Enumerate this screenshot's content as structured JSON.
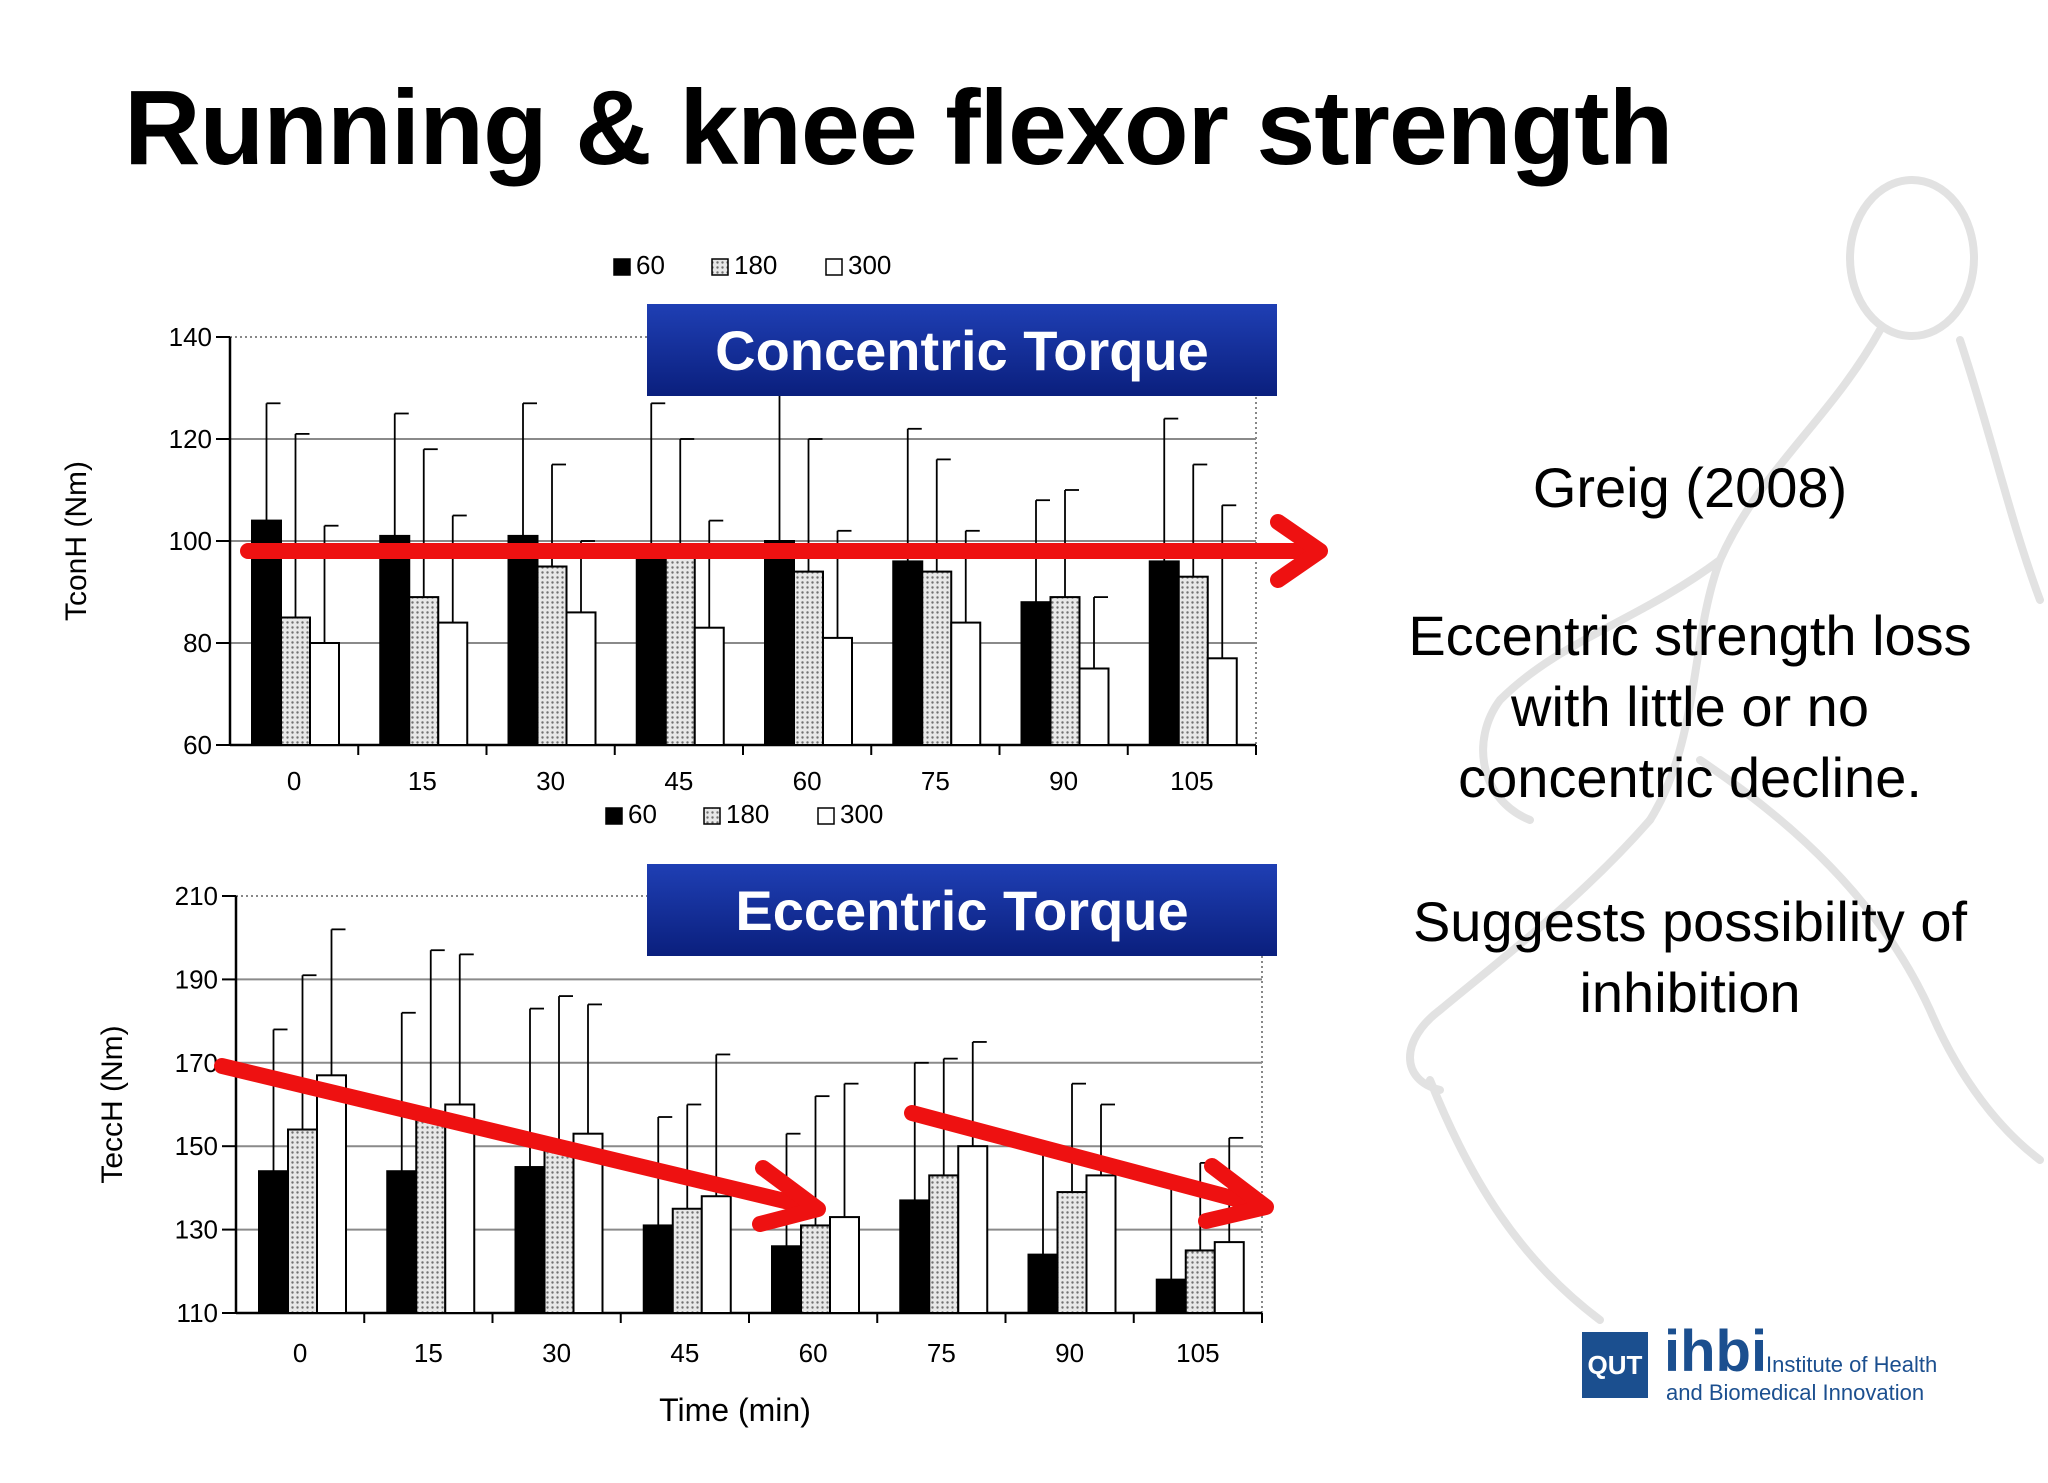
{
  "slide": {
    "title": "Running & knee flexor strength",
    "reference": "Greig (2008)",
    "finding": "Eccentric strength loss with little or no concentric decline.",
    "suggestion": "Suggests possibility of inhibition",
    "logo": {
      "mark": "QUT",
      "name": "ihbi",
      "line1": "Institute of Health",
      "line2": "and Biomedical Innovation"
    },
    "colors": {
      "banner": "#0f2d95",
      "arrow": "#ee1111",
      "logo": "#1b4f8f"
    }
  },
  "chart_data": [
    {
      "type": "bar",
      "title": "Concentric Torque",
      "ylabel": "TconH (Nm)",
      "xlabel": "",
      "ylim": [
        60,
        140
      ],
      "yticks": [
        60,
        80,
        100,
        120,
        140
      ],
      "categories": [
        "0",
        "15",
        "30",
        "45",
        "60",
        "75",
        "90",
        "105"
      ],
      "legend_position": "top",
      "grid": true,
      "series": [
        {
          "name": "60",
          "fill": "black",
          "values": [
            104,
            101,
            101,
            99,
            100,
            96,
            88,
            96
          ],
          "err": [
            127,
            125,
            127,
            127,
            130,
            122,
            108,
            124
          ]
        },
        {
          "name": "180",
          "fill": "dotted",
          "values": [
            85,
            89,
            95,
            99,
            94,
            94,
            89,
            93
          ],
          "err": [
            121,
            118,
            115,
            120,
            120,
            116,
            110,
            115
          ]
        },
        {
          "name": "300",
          "fill": "white",
          "values": [
            80,
            84,
            86,
            83,
            81,
            84,
            75,
            77
          ],
          "err": [
            103,
            105,
            100,
            104,
            102,
            102,
            89,
            107
          ]
        }
      ]
    },
    {
      "type": "bar",
      "title": "Eccentric Torque",
      "ylabel": "TeccH (Nm)",
      "xlabel": "Time (min)",
      "ylim": [
        110,
        210
      ],
      "yticks": [
        110,
        130,
        150,
        170,
        190,
        210
      ],
      "categories": [
        "0",
        "15",
        "30",
        "45",
        "60",
        "75",
        "90",
        "105"
      ],
      "legend_position": "top",
      "grid": true,
      "series": [
        {
          "name": "60",
          "fill": "black",
          "values": [
            144,
            144,
            145,
            131,
            126,
            137,
            124,
            118
          ],
          "err": [
            178,
            182,
            183,
            157,
            153,
            170,
            148,
            140
          ]
        },
        {
          "name": "180",
          "fill": "dotted",
          "values": [
            154,
            157,
            150,
            135,
            131,
            143,
            139,
            125
          ],
          "err": [
            191,
            197,
            186,
            160,
            162,
            171,
            165,
            146
          ]
        },
        {
          "name": "300",
          "fill": "white",
          "values": [
            167,
            160,
            153,
            138,
            133,
            150,
            143,
            127
          ],
          "err": [
            202,
            196,
            184,
            172,
            165,
            175,
            160,
            152
          ]
        }
      ]
    }
  ]
}
